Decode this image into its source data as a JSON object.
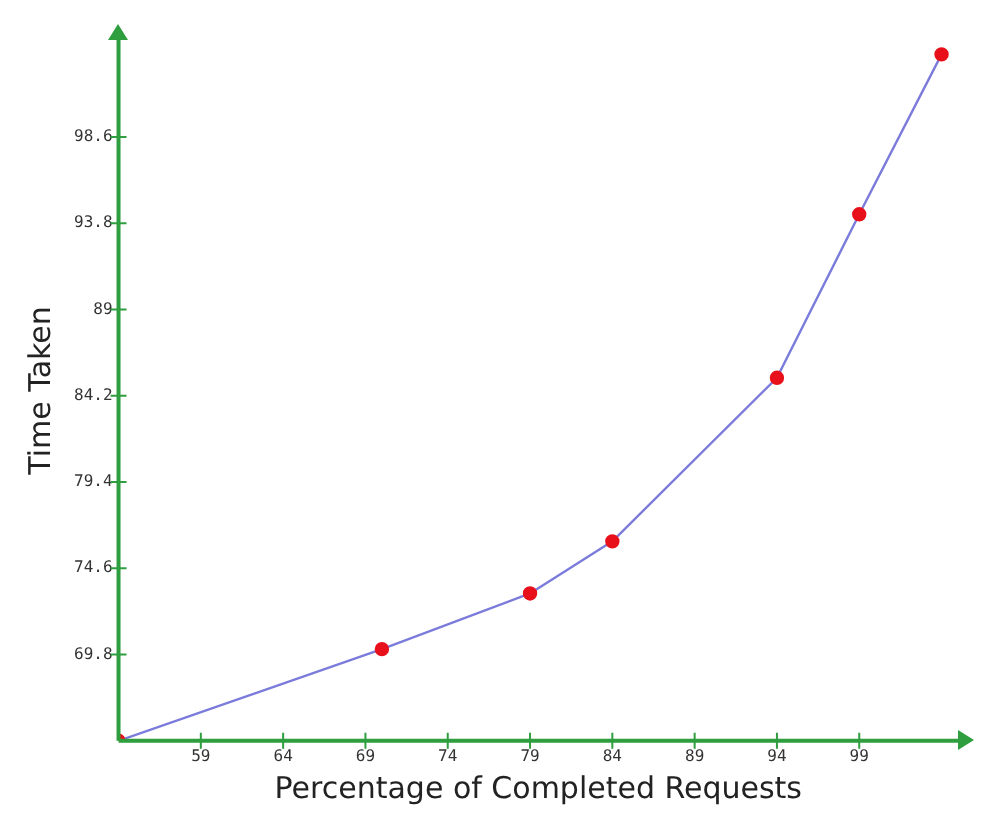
{
  "chart_data": {
    "type": "line",
    "xlabel": "Percentage of Completed Requests",
    "ylabel": "Time Taken",
    "x": [
      54,
      70,
      79,
      84,
      94,
      99,
      104
    ],
    "series": [
      {
        "color": "#7b7bdc",
        "values": [
          65,
          70.1,
          73.2,
          76.1,
          85.2,
          94.3,
          103.2
        ]
      }
    ],
    "xlim": [
      54,
      105
    ],
    "xticks": [
      59,
      64,
      69,
      74,
      79,
      84,
      89,
      94,
      99
    ],
    "ylim": [
      65,
      104
    ],
    "yticks": [
      69.8,
      74.6,
      79.4,
      84.2,
      89,
      93.8,
      98.6
    ],
    "grid": false,
    "legend": false,
    "marker": "circle",
    "line_style": "solid"
  }
}
